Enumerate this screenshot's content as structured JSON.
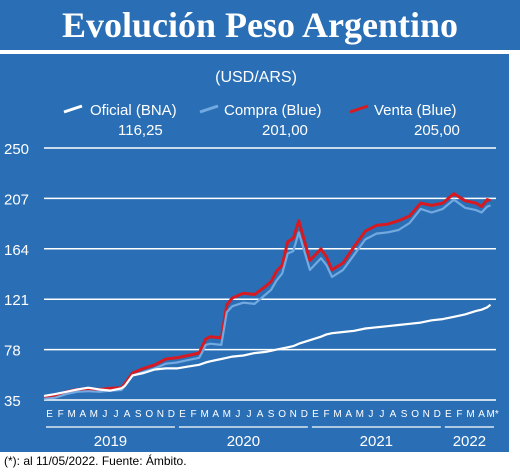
{
  "title": "Evolución Peso Argentino",
  "caption": "(*): al 11/05/2022.  Fuente: Ámbito.",
  "colors": {
    "panel": "#2a6fb5",
    "oficial": "#ffffff",
    "compra": "#72a9e0",
    "venta": "#d71a21"
  },
  "chart_data": {
    "type": "line",
    "unit": "(USD/ARS)",
    "ylim": [
      35,
      250
    ],
    "yticks": [
      "250",
      "207",
      "164",
      "121",
      "78",
      "35"
    ],
    "ytick_values": [
      250,
      207,
      164,
      121,
      78,
      35
    ],
    "grid": true,
    "month_labels": [
      "E",
      "F",
      "M",
      "A",
      "M",
      "J",
      "J",
      "A",
      "S",
      "O",
      "N",
      "D",
      "E",
      "F",
      "M",
      "A",
      "M",
      "J",
      "J",
      "A",
      "S",
      "O",
      "N",
      "D",
      "E",
      "F",
      "M",
      "A",
      "M",
      "J",
      "J",
      "A",
      "S",
      "O",
      "N",
      "D",
      "E",
      "F",
      "M",
      "A",
      "M*"
    ],
    "years": [
      "2019",
      "2020",
      "2021",
      "2022"
    ],
    "legend": [
      {
        "name": "Oficial (BNA)",
        "value": "116,25",
        "color": "#ffffff"
      },
      {
        "name": "Compra (Blue)",
        "value": "201,00",
        "color": "#72a9e0"
      },
      {
        "name": "Venta (Blue)",
        "value": "205,00",
        "color": "#d71a21"
      }
    ],
    "x": [
      0,
      1,
      2,
      3,
      4,
      5,
      6,
      7,
      7.3,
      8,
      9,
      10,
      11,
      12,
      13,
      14,
      14.3,
      14.6,
      15,
      16,
      16.5,
      17,
      18,
      19,
      20,
      20.5,
      21,
      21.5,
      22,
      22.5,
      23,
      24,
      25,
      25.5,
      26,
      27,
      28,
      29,
      30,
      31,
      32,
      33,
      34,
      35,
      36,
      37,
      38,
      39,
      39.5,
      40,
      40.3
    ],
    "series": [
      {
        "name": "Oficial (BNA)",
        "values": [
          38.5,
          40,
          42,
          44,
          45.5,
          44,
          43,
          45,
          47,
          56,
          58,
          61,
          62,
          62,
          63.5,
          65,
          66,
          67,
          68,
          70,
          71,
          72,
          73,
          75,
          76,
          77,
          78,
          79,
          80,
          81,
          83,
          86,
          89,
          91,
          92,
          93,
          94,
          96,
          97,
          98,
          99,
          100,
          101,
          103,
          104,
          106,
          108,
          111,
          112,
          114,
          116.25
        ]
      },
      {
        "name": "Compra (Blue)",
        "values": [
          36,
          37,
          40,
          42,
          42.5,
          42,
          43,
          43.5,
          47,
          56,
          59,
          62,
          66,
          67,
          69,
          71,
          76,
          82,
          83,
          82,
          110,
          115,
          118,
          117,
          125,
          129,
          137,
          143,
          160,
          162,
          178,
          146,
          156,
          150,
          140,
          146,
          159,
          172,
          177,
          178,
          180,
          186,
          198,
          195,
          198,
          206,
          199,
          197,
          195,
          200,
          201
        ]
      },
      {
        "name": "Venta (Blue)",
        "values": [
          38,
          39,
          42,
          44,
          44.5,
          44,
          45,
          45.5,
          49,
          58,
          62,
          65,
          70,
          71,
          73,
          75,
          81,
          87,
          89,
          88,
          116,
          122,
          126,
          125,
          132,
          136,
          145,
          150,
          170,
          173,
          188,
          154,
          164,
          157,
          146,
          152,
          166,
          179,
          184,
          185,
          188,
          192,
          203,
          201,
          203,
          211,
          205,
          203,
          200,
          206,
          205
        ]
      }
    ]
  }
}
